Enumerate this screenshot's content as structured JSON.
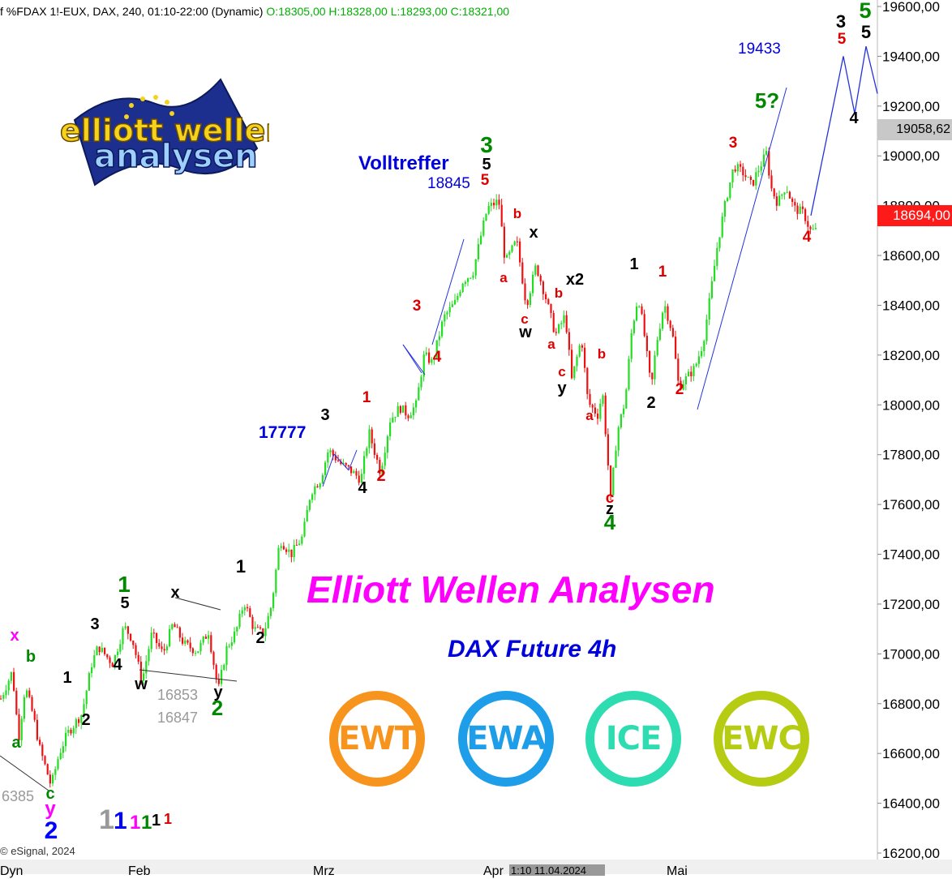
{
  "header": {
    "symbol_line": "f %FDAX 1!-EUX, DAX, 240, 01:10-22:00 (Dynamic)",
    "ohlc": "O:18305,00 H:18328,00 L:18293,00 C:18321,00"
  },
  "copyright": "© eSignal, 2024",
  "logo": {
    "line1": "elliott wellen",
    "line2": "analysen"
  },
  "title": "Elliott Wellen Analysen",
  "subtitle": "DAX Future 4h",
  "badges": [
    {
      "label": "EWT",
      "color": "#f7941d"
    },
    {
      "label": "EWA",
      "color": "#1e9ee8"
    },
    {
      "label": "ICE",
      "color": "#2ddcb0"
    },
    {
      "label": "EWC",
      "color": "#b6cc12"
    }
  ],
  "price_tags": {
    "grey": "19058,62",
    "red": "18694,00"
  },
  "x_axis": {
    "labels": [
      "Feb",
      "Mrz",
      "Apr",
      "Mai"
    ],
    "selected": "1:10 11.04.2024",
    "left_label": "Dyn"
  },
  "chart_data": {
    "type": "candlestick",
    "y_axis": {
      "min": 16200,
      "max": 19600,
      "side": "right",
      "ticks": [
        "16200,00",
        "16400,00",
        "16600,00",
        "16800,00",
        "17000,00",
        "17200,00",
        "17400,00",
        "17600,00",
        "17800,00",
        "18000,00",
        "18200,00",
        "18400,00",
        "18600,00",
        "18800,00",
        "19000,00",
        "19200,00",
        "19400,00",
        "19600,00"
      ]
    },
    "path": [
      [
        0,
        16820
      ],
      [
        14,
        16930
      ],
      [
        22,
        16660
      ],
      [
        30,
        16870
      ],
      [
        40,
        16750
      ],
      [
        48,
        16620
      ],
      [
        62,
        16470
      ],
      [
        72,
        16600
      ],
      [
        82,
        16680
      ],
      [
        100,
        16760
      ],
      [
        112,
        16960
      ],
      [
        120,
        17030
      ],
      [
        138,
        16960
      ],
      [
        152,
        17110
      ],
      [
        162,
        17060
      ],
      [
        174,
        16890
      ],
      [
        186,
        17080
      ],
      [
        200,
        17000
      ],
      [
        212,
        17120
      ],
      [
        226,
        17040
      ],
      [
        242,
        17010
      ],
      [
        256,
        17090
      ],
      [
        268,
        16850
      ],
      [
        278,
        17020
      ],
      [
        290,
        17090
      ],
      [
        300,
        17210
      ],
      [
        312,
        17100
      ],
      [
        324,
        17080
      ],
      [
        334,
        17200
      ],
      [
        344,
        17460
      ],
      [
        358,
        17400
      ],
      [
        372,
        17470
      ],
      [
        382,
        17650
      ],
      [
        394,
        17700
      ],
      [
        404,
        17820
      ],
      [
        420,
        17760
      ],
      [
        430,
        17740
      ],
      [
        444,
        17700
      ],
      [
        454,
        17890
      ],
      [
        468,
        17730
      ],
      [
        480,
        17940
      ],
      [
        492,
        17990
      ],
      [
        502,
        17960
      ],
      [
        512,
        18000
      ],
      [
        522,
        18200
      ],
      [
        532,
        18170
      ],
      [
        546,
        18350
      ],
      [
        560,
        18410
      ],
      [
        570,
        18500
      ],
      [
        582,
        18530
      ],
      [
        592,
        18680
      ],
      [
        600,
        18790
      ],
      [
        614,
        18820
      ],
      [
        622,
        18570
      ],
      [
        636,
        18660
      ],
      [
        648,
        18400
      ],
      [
        660,
        18560
      ],
      [
        672,
        18430
      ],
      [
        684,
        18280
      ],
      [
        696,
        18360
      ],
      [
        704,
        18100
      ],
      [
        716,
        18270
      ],
      [
        724,
        18010
      ],
      [
        736,
        17960
      ],
      [
        742,
        18050
      ],
      [
        752,
        17620
      ],
      [
        760,
        17890
      ],
      [
        770,
        18020
      ],
      [
        778,
        18300
      ],
      [
        786,
        18440
      ],
      [
        794,
        18270
      ],
      [
        802,
        18060
      ],
      [
        808,
        18240
      ],
      [
        818,
        18410
      ],
      [
        828,
        18290
      ],
      [
        836,
        18070
      ],
      [
        846,
        18110
      ],
      [
        856,
        18150
      ],
      [
        866,
        18250
      ],
      [
        874,
        18420
      ],
      [
        884,
        18650
      ],
      [
        894,
        18820
      ],
      [
        904,
        18960
      ],
      [
        916,
        18930
      ],
      [
        926,
        18880
      ],
      [
        932,
        18930
      ],
      [
        944,
        19010
      ],
      [
        950,
        18870
      ],
      [
        958,
        18810
      ],
      [
        968,
        18880
      ],
      [
        978,
        18790
      ],
      [
        990,
        18770
      ],
      [
        998,
        18700
      ],
      [
        1006,
        18700
      ]
    ],
    "projection": [
      [
        1000,
        18760
      ],
      [
        1040,
        19400
      ],
      [
        1054,
        19170
      ],
      [
        1068,
        19440
      ],
      [
        1082,
        19250
      ]
    ],
    "annotations": [
      {
        "t": "x",
        "color": "#ff00ff"
      },
      {
        "t": "b",
        "color": "#008800"
      },
      {
        "t": "a",
        "color": "#008800"
      },
      {
        "t": "c",
        "color": "#008800"
      },
      {
        "t": "y",
        "color": "#ff00ff"
      },
      {
        "t": "2",
        "color": "#0000ff"
      },
      {
        "t": "1",
        "color": "#000000"
      },
      {
        "t": "2",
        "color": "#000000"
      },
      {
        "t": "3",
        "color": "#000000"
      },
      {
        "t": "4",
        "color": "#000000"
      },
      {
        "t": "1",
        "color": "#008800"
      },
      {
        "t": "5",
        "color": "#000000"
      },
      {
        "t": "x",
        "color": "#000000"
      },
      {
        "t": "w",
        "color": "#000000"
      },
      {
        "t": "y",
        "color": "#000000"
      },
      {
        "t": "2",
        "color": "#008800"
      },
      {
        "t": "1",
        "color": "#000000"
      },
      {
        "t": "2",
        "color": "#000000"
      },
      {
        "t": "3",
        "color": "#000000"
      },
      {
        "t": "4",
        "color": "#000000"
      },
      {
        "t": "1",
        "color": "#dd0000"
      },
      {
        "t": "2",
        "color": "#dd0000"
      },
      {
        "t": "3",
        "color": "#dd0000"
      },
      {
        "t": "4",
        "color": "#dd0000"
      },
      {
        "t": "3",
        "color": "#008800"
      },
      {
        "t": "5",
        "color": "#000000"
      },
      {
        "t": "5",
        "color": "#dd0000"
      },
      {
        "t": "b",
        "color": "#dd0000"
      },
      {
        "t": "x",
        "color": "#000000"
      },
      {
        "t": "a",
        "color": "#dd0000"
      },
      {
        "t": "c",
        "color": "#dd0000"
      },
      {
        "t": "w",
        "color": "#000000"
      },
      {
        "t": "b",
        "color": "#dd0000"
      },
      {
        "t": "x2",
        "color": "#000000"
      },
      {
        "t": "a",
        "color": "#dd0000"
      },
      {
        "t": "c",
        "color": "#dd0000"
      },
      {
        "t": "y",
        "color": "#000000"
      },
      {
        "t": "b",
        "color": "#dd0000"
      },
      {
        "t": "a",
        "color": "#dd0000"
      },
      {
        "t": "c",
        "color": "#dd0000"
      },
      {
        "t": "z",
        "color": "#000000"
      },
      {
        "t": "4",
        "color": "#008800"
      },
      {
        "t": "1",
        "color": "#000000"
      },
      {
        "t": "2",
        "color": "#000000"
      },
      {
        "t": "1",
        "color": "#dd0000"
      },
      {
        "t": "2",
        "color": "#dd0000"
      },
      {
        "t": "3",
        "color": "#dd0000"
      },
      {
        "t": "5?",
        "color": "#008800"
      },
      {
        "t": "4",
        "color": "#dd0000"
      },
      {
        "t": "3",
        "color": "#000000"
      },
      {
        "t": "5",
        "color": "#dd0000"
      },
      {
        "t": "5",
        "color": "#008800"
      },
      {
        "t": "5",
        "color": "#000000"
      },
      {
        "t": "4",
        "color": "#000000"
      }
    ],
    "price_notes": [
      {
        "t": "Volltreffer",
        "color": "#0000dd"
      },
      {
        "t": "18845",
        "color": "#0000dd"
      },
      {
        "t": "17777",
        "color": "#0000dd"
      },
      {
        "t": "19433",
        "color": "#0000dd"
      },
      {
        "t": "16853",
        "color": "#999999"
      },
      {
        "t": "16847",
        "color": "#999999"
      },
      {
        "t": "6385",
        "color": "#999999"
      }
    ],
    "legend_counts": [
      {
        "t": "1",
        "color": "#999999"
      },
      {
        "t": "1",
        "color": "#0000ff"
      },
      {
        "t": "1",
        "color": "#ff00ff"
      },
      {
        "t": "1",
        "color": "#008800"
      },
      {
        "t": "1",
        "color": "#000000"
      },
      {
        "t": "1",
        "color": "#dd0000"
      }
    ]
  }
}
